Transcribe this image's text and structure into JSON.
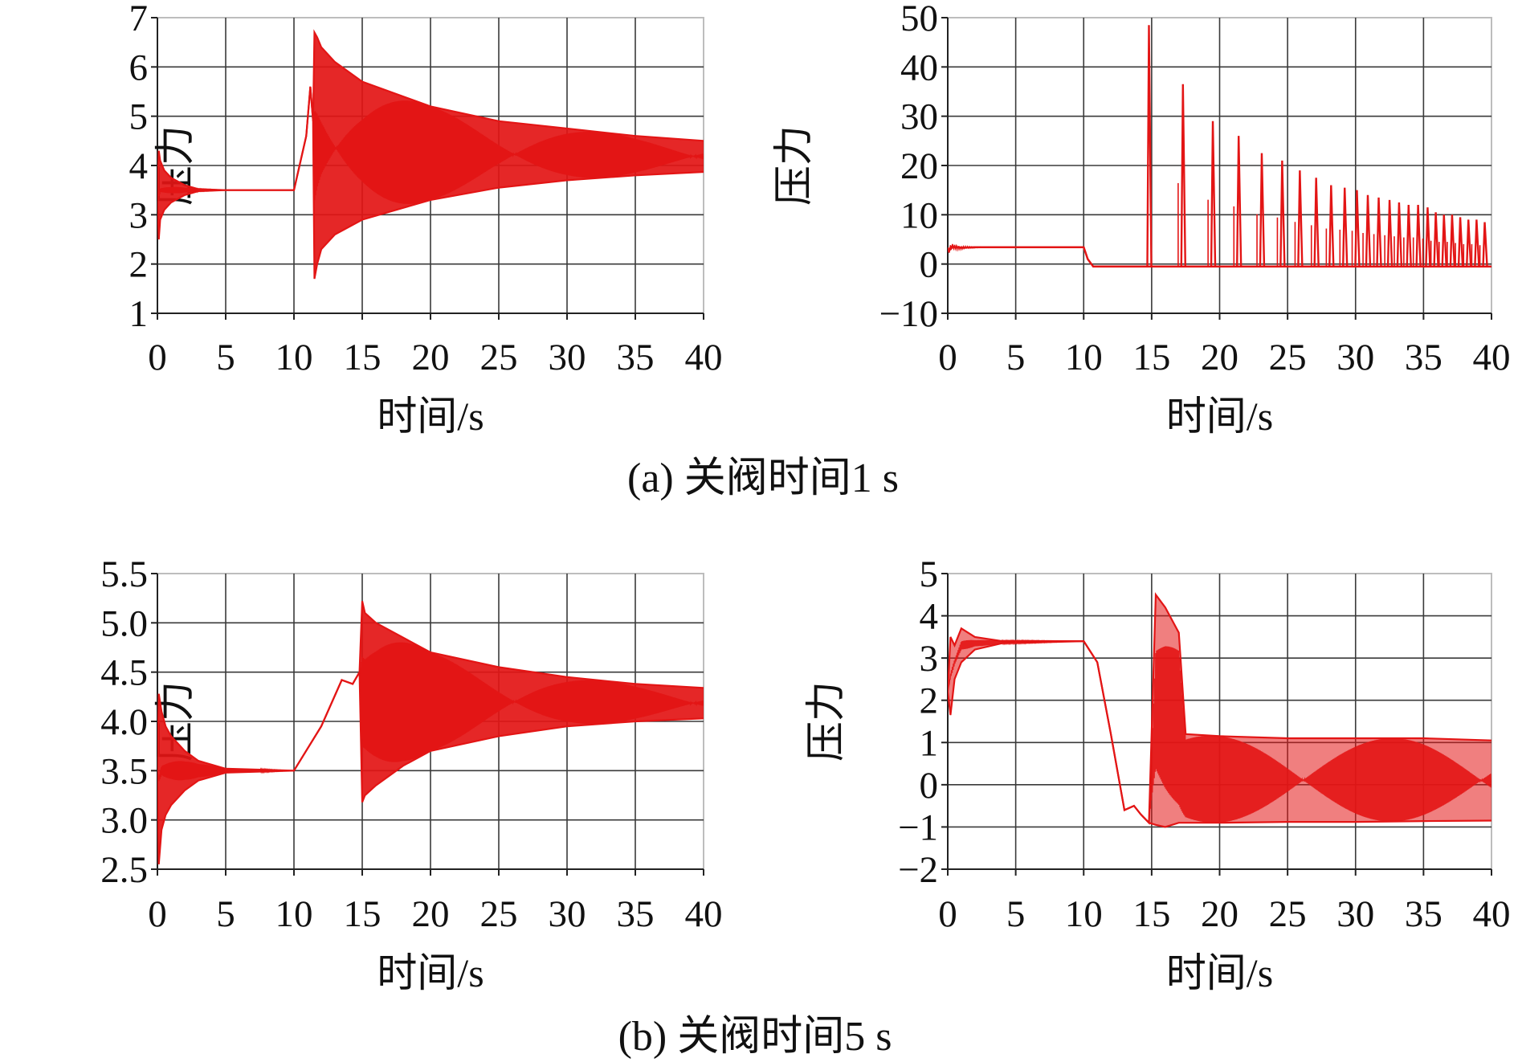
{
  "colors": {
    "series": "#e31515",
    "grid": "#3a3a3a",
    "frame": "#bdbdbd"
  },
  "captions": {
    "a": "(a) 关阀时间1 s",
    "b": "(b) 关阀时间5 s"
  },
  "chart_data": [
    {
      "type": "line",
      "panel": "a-left",
      "xlabel": "时间/s",
      "ylabel": "压力",
      "xlim": [
        0,
        40
      ],
      "ylim": [
        1,
        7
      ],
      "xticks": [
        "0",
        "5",
        "10",
        "15",
        "20",
        "25",
        "30",
        "35",
        "40"
      ],
      "yticks": [
        "1",
        "2",
        "3",
        "4",
        "5",
        "6",
        "7"
      ],
      "grid": true,
      "series": [
        {
          "kind": "decaying-oscillation",
          "x": [
            0,
            0.1,
            0.2,
            0.5,
            1,
            2,
            3,
            5,
            10,
            10.9,
            11.2,
            11.4,
            11.5,
            11.7,
            12,
            13,
            15,
            20,
            25,
            30,
            35,
            40
          ],
          "upper": [
            3.4,
            4.3,
            4.1,
            3.9,
            3.75,
            3.6,
            3.52,
            3.5,
            3.5,
            4.6,
            5.6,
            4.9,
            6.7,
            6.6,
            6.4,
            6.1,
            5.7,
            5.2,
            4.9,
            4.75,
            4.6,
            4.5
          ],
          "lower": [
            3.4,
            2.5,
            2.9,
            3.1,
            3.25,
            3.4,
            3.48,
            3.5,
            3.5,
            4.6,
            5.6,
            4.9,
            1.7,
            2.0,
            2.3,
            2.6,
            2.9,
            3.3,
            3.55,
            3.7,
            3.8,
            3.87
          ]
        }
      ]
    },
    {
      "type": "line",
      "panel": "a-right",
      "xlabel": "时间/s",
      "ylabel": "压力",
      "xlim": [
        0,
        40
      ],
      "ylim": [
        -10,
        50
      ],
      "xticks": [
        "0",
        "5",
        "10",
        "15",
        "20",
        "25",
        "30",
        "35",
        "40"
      ],
      "yticks": [
        "−10",
        "0",
        "10",
        "20",
        "30",
        "40",
        "50"
      ],
      "grid": true,
      "series": [
        {
          "kind": "spikes-on-baseline",
          "base_x": [
            0,
            0.3,
            1,
            2,
            10,
            10.3,
            10.7,
            40
          ],
          "base_y": [
            2.5,
            3.5,
            3.3,
            3.4,
            3.4,
            1.0,
            -0.5,
            -0.5
          ],
          "spike_x": [
            14.8,
            17.3,
            19.5,
            21.4,
            23.1,
            24.6,
            25.9,
            27.1,
            28.2,
            29.2,
            30.1,
            30.9,
            31.7,
            32.5,
            33.2,
            33.9,
            34.6,
            35.3,
            35.9,
            36.5,
            37.1,
            37.7,
            38.3,
            38.9,
            39.5
          ],
          "spike_y": [
            48.5,
            36.5,
            29,
            26,
            22.5,
            21,
            19,
            17.5,
            16,
            15.5,
            15,
            14,
            13.5,
            13,
            12.5,
            12,
            12,
            11.5,
            10.5,
            10,
            10,
            9.5,
            9,
            9,
            8.5
          ]
        }
      ]
    },
    {
      "type": "line",
      "panel": "b-left",
      "xlabel": "时间/s",
      "ylabel": "压力",
      "xlim": [
        0,
        40
      ],
      "ylim": [
        2.5,
        5.5
      ],
      "xticks": [
        "0",
        "5",
        "10",
        "15",
        "20",
        "25",
        "30",
        "35",
        "40"
      ],
      "yticks": [
        "2.5",
        "3.0",
        "3.5",
        "4.0",
        "4.5",
        "5.0",
        "5.5"
      ],
      "grid": true,
      "series": [
        {
          "kind": "decaying-oscillation",
          "x": [
            0,
            0.1,
            0.3,
            0.6,
            1,
            2,
            3,
            5,
            10,
            12,
            13.5,
            14.3,
            14.8,
            15,
            15.2,
            16,
            18,
            20,
            25,
            30,
            35,
            40
          ],
          "upper": [
            3.5,
            4.28,
            4.1,
            3.95,
            3.85,
            3.7,
            3.6,
            3.52,
            3.5,
            3.95,
            4.42,
            4.38,
            4.5,
            5.22,
            5.1,
            5.0,
            4.85,
            4.7,
            4.55,
            4.45,
            4.38,
            4.34
          ],
          "lower": [
            3.5,
            2.55,
            2.9,
            3.05,
            3.15,
            3.3,
            3.4,
            3.48,
            3.5,
            3.95,
            4.42,
            4.38,
            4.5,
            3.18,
            3.25,
            3.35,
            3.55,
            3.7,
            3.85,
            3.95,
            4.0,
            4.03
          ]
        }
      ]
    },
    {
      "type": "line",
      "panel": "b-right",
      "xlabel": "时间/s",
      "ylabel": "压力",
      "xlim": [
        0,
        40
      ],
      "ylim": [
        -2,
        5
      ],
      "xticks": [
        "0",
        "5",
        "10",
        "15",
        "20",
        "25",
        "30",
        "35",
        "40"
      ],
      "yticks": [
        "−2",
        "−1",
        "0",
        "1",
        "2",
        "3",
        "4",
        "5"
      ],
      "grid": true,
      "series": [
        {
          "kind": "oscillation-band",
          "x": [
            0,
            0.2,
            0.5,
            1,
            2,
            4,
            10,
            11,
            12,
            13,
            13.7,
            14.2,
            14.8,
            15.3,
            16,
            17,
            17.5,
            20,
            25,
            30,
            35,
            40
          ],
          "upper": [
            2.2,
            3.5,
            3.3,
            3.7,
            3.5,
            3.4,
            3.4,
            2.9,
            1.2,
            -0.6,
            -0.5,
            -0.7,
            -0.9,
            4.5,
            4.2,
            3.6,
            1.2,
            1.15,
            1.1,
            1.1,
            1.1,
            1.05
          ],
          "lower": [
            2.2,
            1.65,
            2.5,
            2.9,
            3.2,
            3.35,
            3.4,
            2.9,
            1.2,
            -0.6,
            -0.5,
            -0.7,
            -0.9,
            -0.95,
            -1.0,
            -0.9,
            -0.9,
            -0.9,
            -0.88,
            -0.88,
            -0.86,
            -0.85
          ]
        }
      ]
    }
  ]
}
